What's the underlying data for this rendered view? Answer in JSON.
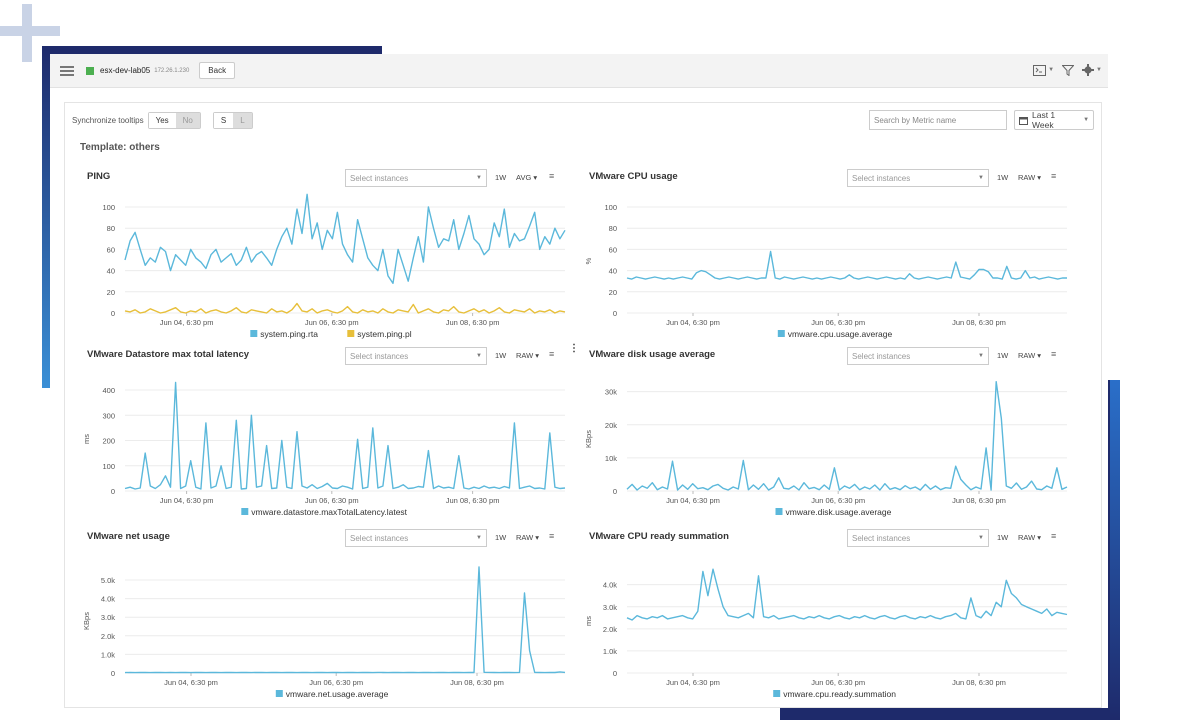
{
  "toolbar": {
    "host_name": "esx-dev-lab05",
    "host_ip": "172.26.1.230",
    "back_label": "Back"
  },
  "controls": {
    "sync_label": "Synchronize tooltips",
    "sync_yes": "Yes",
    "sync_no": "No",
    "size_s": "S",
    "size_l": "L",
    "search_placeholder": "Search by Metric name",
    "range_label": "Last 1 Week",
    "template_label": "Template: others",
    "select_instances": "Select instances",
    "period": "1W"
  },
  "colors": {
    "series_blue": "#5bb8db",
    "series_yellow": "#e7bf3a",
    "status_green": "#4caf50"
  },
  "chart_data": [
    {
      "type": "line",
      "title": "PING",
      "aggregation": "AVG",
      "ylabel": "",
      "ylim": [
        0,
        100
      ],
      "yticks": [
        0,
        20,
        40,
        60,
        80,
        100
      ],
      "ytick_labels": [
        "0",
        "20",
        "40",
        "60",
        "80",
        "100"
      ],
      "xticks": [
        0.14,
        0.47,
        0.79
      ],
      "xtick_labels": [
        "Jun 04, 6:30 pm",
        "Jun 06, 6:30 pm",
        "Jun 08, 6:30 pm"
      ],
      "series": [
        {
          "name": "system.ping.rta",
          "color": "#5bb8db",
          "values": [
            50,
            68,
            76,
            60,
            45,
            52,
            48,
            62,
            58,
            40,
            55,
            50,
            45,
            60,
            52,
            48,
            42,
            55,
            60,
            48,
            52,
            56,
            45,
            50,
            62,
            48,
            55,
            58,
            52,
            45,
            60,
            72,
            80,
            65,
            98,
            75,
            112,
            70,
            85,
            60,
            78,
            70,
            95,
            65,
            55,
            48,
            88,
            70,
            52,
            45,
            40,
            60,
            35,
            28,
            60,
            45,
            30,
            52,
            72,
            48,
            100,
            80,
            62,
            70,
            68,
            88,
            60,
            75,
            92,
            70,
            65,
            55,
            60,
            85,
            72,
            98,
            62,
            75,
            68,
            70,
            82,
            95,
            60,
            72,
            65,
            80,
            70,
            78
          ]
        },
        {
          "name": "system.ping.pl",
          "color": "#e7bf3a",
          "values": [
            2,
            1,
            3,
            0,
            1,
            4,
            2,
            0,
            1,
            3,
            5,
            1,
            0,
            2,
            1,
            4,
            0,
            2,
            3,
            1,
            0,
            2,
            5,
            1,
            0,
            3,
            2,
            1,
            0,
            4,
            1,
            2,
            0,
            3,
            9,
            2,
            1,
            4,
            0,
            2,
            3,
            1,
            0,
            2,
            6,
            1,
            0,
            3,
            1,
            2,
            0,
            4,
            1,
            0,
            3,
            2,
            1,
            8,
            0,
            2,
            4,
            1,
            0,
            3,
            2,
            6,
            1,
            0,
            2,
            4,
            1,
            3,
            0,
            2,
            5,
            1,
            0,
            3,
            2,
            1,
            4,
            0,
            2,
            1,
            3,
            0,
            2,
            1
          ]
        }
      ]
    },
    {
      "type": "line",
      "title": "VMware CPU usage",
      "aggregation": "RAW",
      "ylabel": "%",
      "ylim": [
        0,
        100
      ],
      "yticks": [
        0,
        20,
        40,
        60,
        80,
        100
      ],
      "ytick_labels": [
        "0",
        "20",
        "40",
        "60",
        "80",
        "100"
      ],
      "xticks": [
        0.15,
        0.48,
        0.8
      ],
      "xtick_labels": [
        "Jun 04, 6:30 pm",
        "Jun 06, 6:30 pm",
        "Jun 08, 6:30 pm"
      ],
      "series": [
        {
          "name": "vmware.cpu.usage.average",
          "color": "#5bb8db",
          "values": [
            33,
            32,
            34,
            33,
            32,
            33,
            34,
            33,
            32,
            33,
            32,
            33,
            34,
            33,
            32,
            38,
            40,
            39,
            36,
            33,
            32,
            33,
            34,
            33,
            32,
            33,
            34,
            33,
            32,
            33,
            33,
            58,
            33,
            32,
            34,
            33,
            32,
            33,
            34,
            33,
            32,
            33,
            32,
            33,
            34,
            33,
            32,
            33,
            36,
            33,
            32,
            33,
            34,
            33,
            32,
            33,
            34,
            33,
            32,
            33,
            32,
            37,
            33,
            32,
            33,
            34,
            33,
            32,
            33,
            34,
            33,
            48,
            34,
            33,
            32,
            36,
            41,
            41,
            39,
            33,
            33,
            32,
            44,
            33,
            32,
            33,
            40,
            33,
            34,
            32,
            33,
            34,
            33,
            32,
            33,
            33
          ]
        }
      ]
    },
    {
      "type": "line",
      "title": "VMware Datastore max total latency",
      "aggregation": "RAW",
      "ylabel": "ms",
      "ylim": [
        0,
        420
      ],
      "yticks": [
        0,
        100,
        200,
        300,
        400
      ],
      "ytick_labels": [
        "0",
        "100",
        "200",
        "300",
        "400"
      ],
      "xticks": [
        0.14,
        0.47,
        0.79
      ],
      "xtick_labels": [
        "Jun 04, 6:30 pm",
        "Jun 06, 6:30 pm",
        "Jun 08, 6:30 pm"
      ],
      "series": [
        {
          "name": "vmware.datastore.maxTotalLatency.latest",
          "color": "#5bb8db",
          "values": [
            10,
            15,
            8,
            12,
            150,
            20,
            10,
            25,
            60,
            15,
            430,
            10,
            20,
            120,
            15,
            8,
            270,
            12,
            20,
            100,
            10,
            15,
            280,
            8,
            10,
            300,
            15,
            20,
            180,
            10,
            12,
            200,
            15,
            10,
            235,
            20,
            12,
            25,
            10,
            18,
            30,
            12,
            10,
            20,
            15,
            8,
            205,
            10,
            15,
            250,
            12,
            20,
            180,
            10,
            15,
            25,
            10,
            12,
            18,
            15,
            160,
            10,
            20,
            12,
            15,
            10,
            140,
            12,
            8,
            15,
            10,
            20,
            12,
            15,
            10,
            18,
            12,
            270,
            10,
            15,
            20,
            10,
            12,
            8,
            230,
            15,
            10,
            12
          ]
        }
      ]
    },
    {
      "type": "line",
      "title": "VMware disk usage average",
      "aggregation": "RAW",
      "ylabel": "KBps",
      "ylim": [
        0,
        32000
      ],
      "yticks": [
        0,
        10000,
        20000,
        30000
      ],
      "ytick_labels": [
        "0",
        "10k",
        "20k",
        "30k"
      ],
      "xticks": [
        0.15,
        0.48,
        0.8
      ],
      "xtick_labels": [
        "Jun 04, 6:30 pm",
        "Jun 06, 6:30 pm",
        "Jun 08, 6:30 pm"
      ],
      "series": [
        {
          "name": "vmware.disk.usage.average",
          "color": "#5bb8db",
          "values": [
            500,
            2000,
            300,
            1500,
            800,
            2500,
            400,
            1200,
            600,
            9000,
            300,
            1800,
            500,
            2200,
            700,
            1000,
            400,
            1500,
            2000,
            800,
            300,
            1200,
            600,
            9200,
            400,
            1800,
            500,
            2200,
            300,
            1200,
            4000,
            800,
            600,
            1500,
            300,
            2500,
            700,
            1100,
            400,
            1800,
            500,
            7000,
            300,
            1500,
            800,
            2000,
            400,
            1200,
            600,
            1800,
            300,
            2200,
            500,
            1000,
            400,
            1600,
            700,
            1200,
            300,
            2000,
            500,
            1500,
            400,
            1000,
            800,
            7500,
            3500,
            1800,
            400,
            1200,
            600,
            13000,
            300,
            33000,
            22000,
            1500,
            800,
            2400,
            500,
            1200,
            3000,
            600,
            400,
            1500,
            800,
            7000,
            500,
            1200
          ]
        }
      ]
    },
    {
      "type": "line",
      "title": "VMware net usage",
      "aggregation": "RAW",
      "ylabel": "KBps",
      "ylim": [
        0,
        5700
      ],
      "yticks": [
        0,
        1000,
        2000,
        3000,
        4000,
        5000
      ],
      "ytick_labels": [
        "0",
        "1.0k",
        "2.0k",
        "3.0k",
        "4.0k",
        "5.0k"
      ],
      "xticks": [
        0.15,
        0.48,
        0.8
      ],
      "xtick_labels": [
        "Jun 04, 6:30 pm",
        "Jun 06, 6:30 pm",
        "Jun 08, 6:30 pm"
      ],
      "series": [
        {
          "name": "vmware.net.usage.average",
          "color": "#5bb8db",
          "values": [
            20,
            30,
            20,
            25,
            30,
            20,
            25,
            30,
            20,
            25,
            20,
            30,
            25,
            20,
            30,
            25,
            20,
            30,
            25,
            20,
            30,
            25,
            20,
            30,
            25,
            20,
            30,
            25,
            20,
            30,
            25,
            20,
            30,
            25,
            20,
            30,
            25,
            20,
            30,
            25,
            20,
            30,
            25,
            20,
            30,
            25,
            20,
            30,
            25,
            20,
            30,
            25,
            20,
            30,
            25,
            20,
            30,
            25,
            20,
            30,
            25,
            20,
            30,
            25,
            20,
            30,
            25,
            20,
            30,
            25,
            5700,
            40,
            30,
            25,
            20,
            30,
            25,
            20,
            30,
            4300,
            1200,
            30,
            25,
            20,
            30,
            25,
            60,
            30
          ]
        }
      ]
    },
    {
      "type": "line",
      "title": "VMware CPU ready summation",
      "aggregation": "RAW",
      "ylabel": "ms",
      "ylim": [
        0,
        4800
      ],
      "yticks": [
        0,
        1000,
        2000,
        3000,
        4000
      ],
      "ytick_labels": [
        "0",
        "1.0k",
        "2.0k",
        "3.0k",
        "4.0k"
      ],
      "xticks": [
        0.15,
        0.48,
        0.8
      ],
      "xtick_labels": [
        "Jun 04, 6:30 pm",
        "Jun 06, 6:30 pm",
        "Jun 08, 6:30 pm"
      ],
      "series": [
        {
          "name": "vmware.cpu.ready.summation",
          "color": "#5bb8db",
          "values": [
            2500,
            2400,
            2600,
            2500,
            2450,
            2550,
            2500,
            2600,
            2450,
            2500,
            2550,
            2600,
            2500,
            2450,
            2800,
            4600,
            3500,
            4700,
            3800,
            3000,
            2600,
            2550,
            2500,
            2600,
            2700,
            2500,
            4400,
            2550,
            2500,
            2600,
            2450,
            2500,
            2550,
            2600,
            2500,
            2450,
            2550,
            2500,
            2600,
            2500,
            2450,
            2550,
            2600,
            2500,
            2450,
            2550,
            2500,
            2600,
            2500,
            2450,
            2550,
            2600,
            2500,
            2450,
            2550,
            2600,
            2500,
            2450,
            2550,
            2500,
            2600,
            2500,
            2450,
            2550,
            2600,
            2700,
            2500,
            2450,
            3400,
            2600,
            2500,
            2800,
            2600,
            3200,
            3000,
            4200,
            3600,
            3400,
            3100,
            3000,
            2900,
            2800,
            2700,
            2900,
            2600,
            2750,
            2700,
            2650
          ]
        }
      ]
    }
  ]
}
